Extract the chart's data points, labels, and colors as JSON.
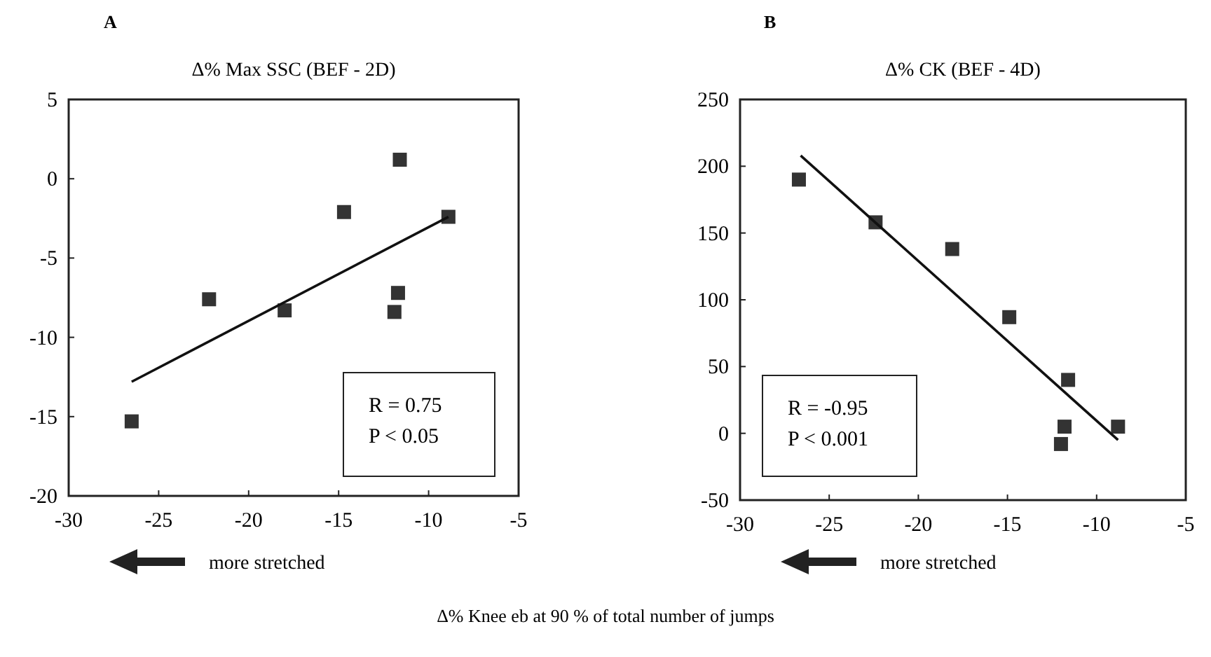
{
  "chart_data": [
    {
      "type": "scatter",
      "title": "Δ% Max SSC (BEF - 2D)",
      "xlabel": "Δ% Knee eb at 90 % of total number of jumps",
      "annotations": [
        "A",
        "R = 0.75",
        "P < 0.05",
        "more stretched"
      ],
      "xlim": [
        -30,
        -5
      ],
      "xticks": [
        -30,
        -25,
        -20,
        -15,
        -10,
        -5
      ],
      "ylim": [
        -20,
        5
      ],
      "yticks": [
        -20,
        -15,
        -10,
        -5,
        0,
        5
      ],
      "grid": false,
      "marker": "square",
      "series": [
        {
          "color": "#333333",
          "x": [
            -26.5,
            -22.2,
            -18.0,
            -14.7,
            -11.9,
            -11.7,
            -11.6,
            -8.9
          ],
          "values": [
            -15.3,
            -7.6,
            -8.3,
            -2.1,
            -8.4,
            -7.2,
            1.2,
            -2.4
          ]
        },
        {
          "type": "line",
          "color": "#111111",
          "marker": "none",
          "line_style": "solid",
          "x": [
            -26.5,
            -8.9
          ],
          "values": [
            -12.8,
            -2.4
          ]
        }
      ]
    },
    {
      "type": "scatter",
      "title": "Δ% CK (BEF - 4D)",
      "annotations": [
        "B",
        "R = -0.95",
        "P < 0.001",
        "more stretched"
      ],
      "xlim": [
        -30,
        -5
      ],
      "xticks": [
        -30,
        -25,
        -20,
        -15,
        -10,
        -5
      ],
      "ylim": [
        -50,
        250
      ],
      "yticks": [
        -50,
        0,
        50,
        100,
        150,
        200,
        250
      ],
      "grid": false,
      "marker": "square",
      "series": [
        {
          "color": "#333333",
          "x": [
            -26.7,
            -22.4,
            -18.1,
            -14.9,
            -12.0,
            -11.8,
            -11.6,
            -8.8
          ],
          "values": [
            190,
            158,
            138,
            87,
            -8,
            5,
            40,
            5
          ]
        },
        {
          "type": "line",
          "color": "#111111",
          "marker": "none",
          "line_style": "solid",
          "x": [
            -26.6,
            -8.8
          ],
          "values": [
            208,
            -5
          ]
        }
      ]
    }
  ]
}
